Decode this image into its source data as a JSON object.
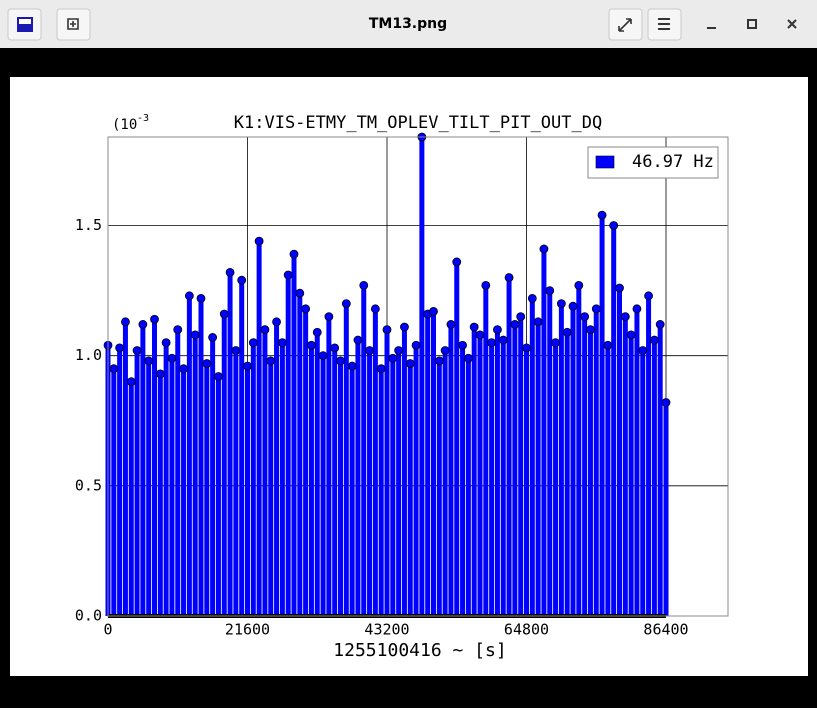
{
  "window": {
    "title": "TM13.png"
  },
  "chart_data": {
    "type": "stem",
    "title": "K1:VIS-ETMY_TM_OPLEV_TILT_PIT_OUT_DQ",
    "y_scale_label": "(10",
    "y_scale_exponent": "-3",
    "x_label": "1255100416 ~ [s]",
    "xlim": [
      0,
      96000
    ],
    "xticks": [
      0,
      21600,
      43200,
      64800,
      86400
    ],
    "ylim": [
      0,
      1.84
    ],
    "yticks": [
      {
        "value": 0,
        "label": "0.0"
      },
      0.5,
      {
        "value": 1,
        "label": "1.0"
      },
      1.5
    ],
    "grid": true,
    "legend": "upper right",
    "x": [
      0,
      900,
      1800,
      2700,
      3600,
      4500,
      5400,
      6300,
      7200,
      8100,
      9000,
      9900,
      10800,
      11700,
      12600,
      13500,
      14400,
      15300,
      16200,
      17100,
      18000,
      18900,
      19800,
      20700,
      21600,
      22500,
      23400,
      24300,
      25200,
      26100,
      27000,
      27900,
      28800,
      29700,
      30600,
      31500,
      32400,
      33300,
      34200,
      35100,
      36000,
      36900,
      37800,
      38700,
      39600,
      40500,
      41400,
      42300,
      43200,
      44100,
      45000,
      45900,
      46800,
      47700,
      48600,
      49500,
      50400,
      51300,
      52200,
      53100,
      54000,
      54900,
      55800,
      56700,
      57600,
      58500,
      59400,
      60300,
      61200,
      62100,
      63000,
      63900,
      64800,
      65700,
      66600,
      67500,
      68400,
      69300,
      70200,
      71100,
      72000,
      72900,
      73800,
      74700,
      75600,
      76500,
      77400,
      78300,
      79200,
      80100,
      81000,
      81900,
      82800,
      83700,
      84600,
      85500,
      86400
    ],
    "series": [
      {
        "name": "46.97 Hz",
        "color": "#0000ff",
        "values": [
          1.04,
          0.95,
          1.03,
          1.13,
          0.9,
          1.02,
          1.12,
          0.98,
          1.14,
          0.93,
          1.05,
          0.99,
          1.1,
          0.95,
          1.23,
          1.08,
          1.22,
          0.97,
          1.07,
          0.92,
          1.16,
          1.32,
          1.02,
          1.29,
          0.96,
          1.05,
          1.44,
          1.1,
          0.98,
          1.13,
          1.05,
          1.31,
          1.39,
          1.24,
          1.18,
          1.04,
          1.09,
          1.0,
          1.15,
          1.03,
          0.98,
          1.2,
          0.96,
          1.06,
          1.27,
          1.02,
          1.18,
          0.95,
          1.1,
          0.99,
          1.02,
          1.11,
          0.97,
          1.04,
          1.84,
          1.16,
          1.17,
          0.98,
          1.02,
          1.12,
          1.36,
          1.04,
          0.99,
          1.11,
          1.08,
          1.27,
          1.05,
          1.1,
          1.06,
          1.3,
          1.12,
          1.15,
          1.03,
          1.22,
          1.13,
          1.41,
          1.25,
          1.05,
          1.2,
          1.09,
          1.19,
          1.27,
          1.15,
          1.1,
          1.18,
          1.54,
          1.04,
          1.5,
          1.26,
          1.15,
          1.08,
          1.18,
          1.02,
          1.23,
          1.06,
          1.12,
          0.82
        ]
      }
    ]
  }
}
